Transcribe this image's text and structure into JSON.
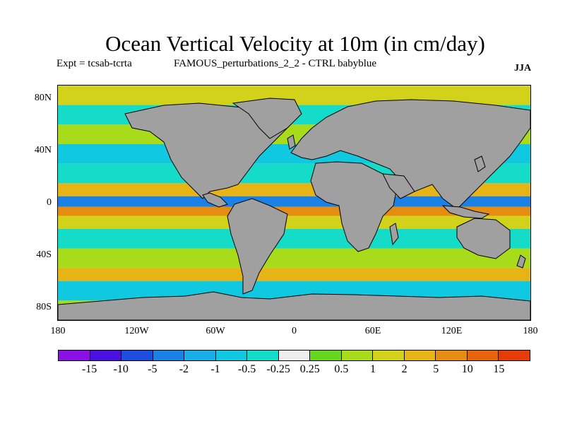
{
  "title": "Ocean Vertical Velocity at 10m (in cm/day)",
  "subtitle_left": "Expt = tcsab-tcrta",
  "subtitle_center": "FAMOUS_perturbations_2_2 - CTRL babyblue",
  "season": "JJA",
  "map": {
    "projection": "cylindrical-equidistant",
    "lon_range": [
      -180,
      180
    ],
    "lat_range": [
      -90,
      90
    ],
    "land_color": "#a0a0a0",
    "ocean_background": "#e6e6e6"
  },
  "lat_ticks": [
    {
      "label": "80N",
      "lat": 80
    },
    {
      "label": "40N",
      "lat": 40
    },
    {
      "label": "0",
      "lat": 0
    },
    {
      "label": "40S",
      "lat": -40
    },
    {
      "label": "80S",
      "lat": -80
    }
  ],
  "lon_ticks": [
    {
      "label": "180",
      "lon": -180
    },
    {
      "label": "120W",
      "lon": -120
    },
    {
      "label": "60W",
      "lon": -60
    },
    {
      "label": "0",
      "lon": 0
    },
    {
      "label": "60E",
      "lon": 60
    },
    {
      "label": "120E",
      "lon": 120
    },
    {
      "label": "180",
      "lon": 180
    }
  ],
  "colorbar": {
    "colors": [
      "#8a10e6",
      "#4a10e0",
      "#1e4ee0",
      "#1a82e6",
      "#18aee6",
      "#10c8e0",
      "#14dcc8",
      "#eeeeee",
      "#66d61e",
      "#a8dc1a",
      "#d2d21a",
      "#e6b414",
      "#e68c10",
      "#e6640c",
      "#e63c0a"
    ],
    "labels": [
      "-15",
      "-10",
      "-5",
      "-2",
      "-1",
      "-0.5",
      "-0.25",
      "0.25",
      "0.5",
      "1",
      "2",
      "5",
      "10",
      "15"
    ]
  },
  "field_bands": [
    {
      "lat": [
        75,
        90
      ],
      "value": 1
    },
    {
      "lat": [
        60,
        75
      ],
      "value": -0.5
    },
    {
      "lat": [
        45,
        60
      ],
      "value": 0.5
    },
    {
      "lat": [
        30,
        45
      ],
      "value": -1
    },
    {
      "lat": [
        15,
        30
      ],
      "value": -0.5
    },
    {
      "lat": [
        5,
        15
      ],
      "value": 2
    },
    {
      "lat": [
        -3,
        5
      ],
      "value": -5
    },
    {
      "lat": [
        -10,
        -3
      ],
      "value": 5
    },
    {
      "lat": [
        -20,
        -10
      ],
      "value": 1
    },
    {
      "lat": [
        -35,
        -20
      ],
      "value": -0.5
    },
    {
      "lat": [
        -50,
        -35
      ],
      "value": 0.5
    },
    {
      "lat": [
        -60,
        -50
      ],
      "value": 2
    },
    {
      "lat": [
        -75,
        -60
      ],
      "value": -1
    },
    {
      "lat": [
        -90,
        -75
      ],
      "value": 0.5
    }
  ]
}
